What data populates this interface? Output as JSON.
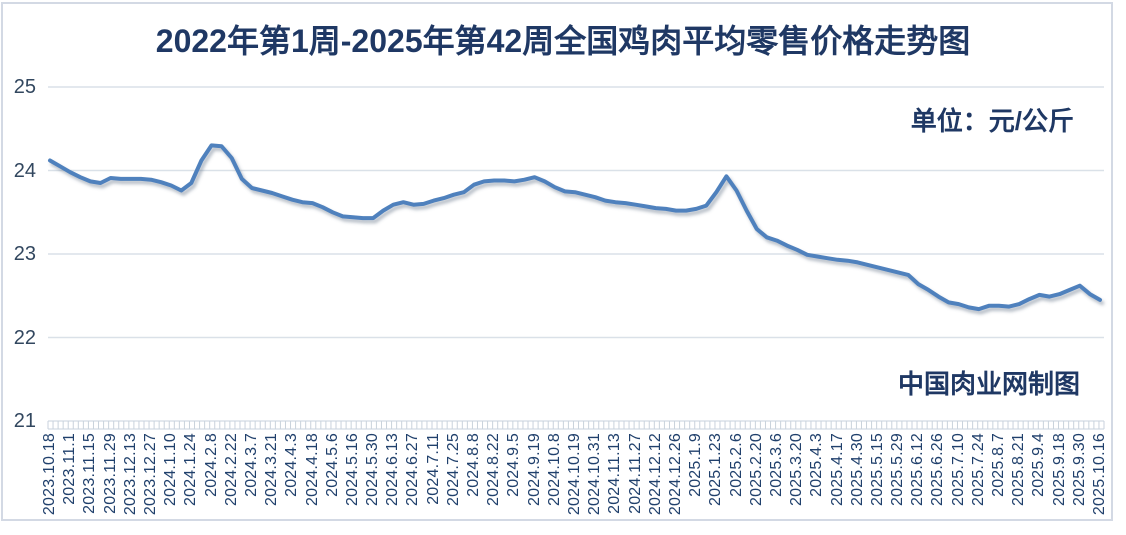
{
  "chart_data": {
    "type": "line",
    "title": "2022年第1周-2025年第42周全国鸡肉平均零售价格走势图",
    "unit_annotation": "单位：元/公斤",
    "credit_annotation": "中国肉业网制图",
    "ylabel": "",
    "xlabel": "",
    "ylim": [
      21,
      25
    ],
    "yticks": [
      25,
      24,
      23,
      22,
      21
    ],
    "ytick_labels": [
      "25",
      "24",
      "23",
      "22",
      "21"
    ],
    "grid": true,
    "legend": false,
    "series_name": "全国鸡肉平均零售价格",
    "points_per_label": 2,
    "x_labels": [
      "2023.10.18",
      "2023.11.1",
      "2023.11.15",
      "2023.11.29",
      "2023.12.13",
      "2023.12.27",
      "2024.1.10",
      "2024.1.24",
      "2024.2.8",
      "2024.2.22",
      "2024.3.7",
      "2024.3.21",
      "2024.4.3",
      "2024.4.18",
      "2024.5.6",
      "2024.5.16",
      "2024.5.30",
      "2024.6.13",
      "2024.6.27",
      "2024.7.11",
      "2024.7.25",
      "2024.8.8",
      "2024.8.22",
      "2024.9.5",
      "2024.9.19",
      "2024.10.8",
      "2024.10.19",
      "2024.10.31",
      "2024.11.13",
      "2024.11.27",
      "2024.12.12",
      "2024.12.26",
      "2025.1.9",
      "2025.1.23",
      "2025.2.6",
      "2025.2.20",
      "2025.3.6",
      "2025.3.20",
      "2025.4.3",
      "2025.4.17",
      "2025.4.30",
      "2025.5.15",
      "2025.5.29",
      "2025.6.12",
      "2025.6.26",
      "2025.7.10",
      "2025.7.24",
      "2025.8.7",
      "2025.8.21",
      "2025.9.4",
      "2025.9.18",
      "2025.9.30",
      "2025.10.16"
    ],
    "values": [
      24.12,
      24.05,
      23.98,
      23.92,
      23.87,
      23.85,
      23.91,
      23.9,
      23.9,
      23.9,
      23.89,
      23.86,
      23.82,
      23.76,
      23.85,
      24.12,
      24.3,
      24.29,
      24.15,
      23.9,
      23.79,
      23.76,
      23.73,
      23.69,
      23.65,
      23.62,
      23.61,
      23.56,
      23.5,
      23.45,
      23.44,
      23.43,
      23.43,
      23.52,
      23.59,
      23.62,
      23.59,
      23.6,
      23.64,
      23.67,
      23.71,
      23.74,
      23.83,
      23.87,
      23.88,
      23.88,
      23.87,
      23.89,
      23.92,
      23.87,
      23.8,
      23.75,
      23.74,
      23.71,
      23.68,
      23.64,
      23.62,
      23.61,
      23.59,
      23.57,
      23.55,
      23.54,
      23.52,
      23.52,
      23.54,
      23.58,
      23.74,
      23.93,
      23.76,
      23.52,
      23.3,
      23.2,
      23.16,
      23.1,
      23.05,
      22.99,
      22.97,
      22.95,
      22.93,
      22.92,
      22.9,
      22.87,
      22.84,
      22.81,
      22.78,
      22.75,
      22.64,
      22.57,
      22.49,
      22.42,
      22.4,
      22.36,
      22.34,
      22.38,
      22.38,
      22.37,
      22.4,
      22.46,
      22.51,
      22.49,
      22.52,
      22.57,
      22.62,
      22.52,
      22.45
    ],
    "colors": {
      "line": "#4F81BD",
      "title_text": "#1F3864",
      "axis_text": "#20406C",
      "gridline": "#DAE1E8",
      "minor_tick": "#C9D2DC",
      "frame_border": "#D3D9E4",
      "background": "#FFFFFF"
    }
  }
}
